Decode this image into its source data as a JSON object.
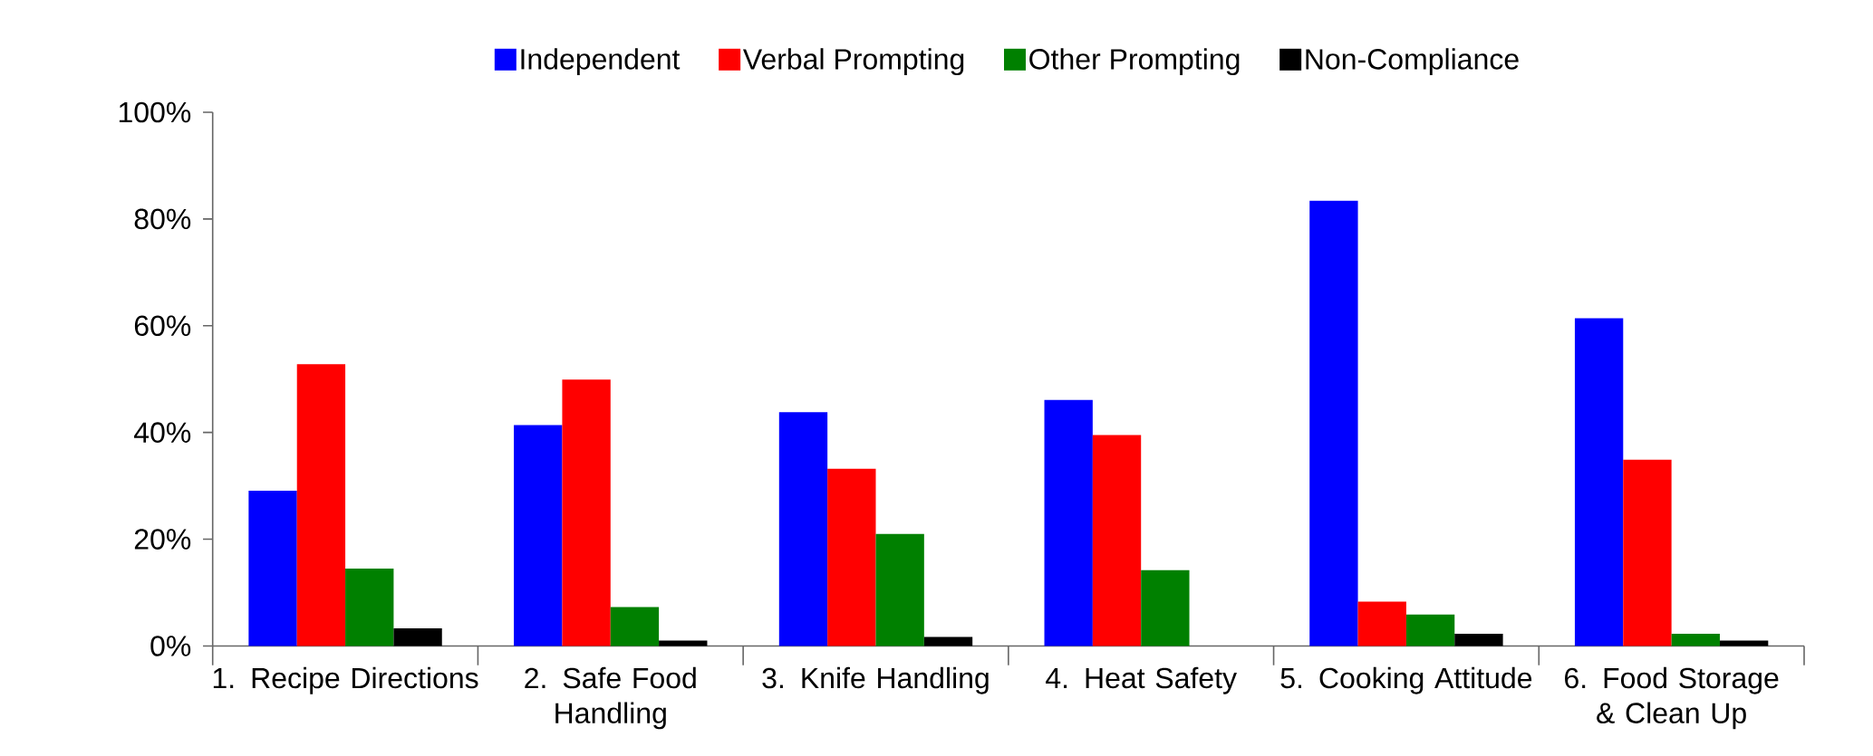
{
  "chart_data": {
    "type": "bar",
    "categories": [
      "1. Recipe Directions",
      "2. Safe Food Handling",
      "3. Knife Handling",
      "4. Heat Safety",
      "5. Cooking Attitude",
      "6. Food Storage & Clean Up"
    ],
    "series": [
      {
        "name": "Independent",
        "color": "#0000ff",
        "values": [
          29.1,
          41.4,
          43.8,
          46.1,
          83.4,
          61.4
        ]
      },
      {
        "name": "Verbal Prompting",
        "color": "#ff0000",
        "values": [
          52.8,
          49.9,
          33.2,
          39.5,
          8.3,
          34.9
        ]
      },
      {
        "name": "Other Prompting",
        "color": "#008000",
        "values": [
          14.5,
          7.3,
          21.0,
          14.2,
          5.9,
          2.3
        ]
      },
      {
        "name": "Non-Compliance",
        "color": "#000000",
        "values": [
          3.3,
          1.0,
          1.7,
          null,
          2.3,
          1.0
        ]
      }
    ],
    "ylim": [
      0,
      100
    ],
    "yticks": [
      {
        "value": 0,
        "label": "0%"
      },
      {
        "value": 20,
        "label": "20%"
      },
      {
        "value": 40,
        "label": "40%"
      },
      {
        "value": 60,
        "label": "60%"
      },
      {
        "value": 80,
        "label": "80%"
      },
      {
        "value": 100,
        "label": "100%"
      }
    ],
    "legend": "top",
    "grid": false
  }
}
